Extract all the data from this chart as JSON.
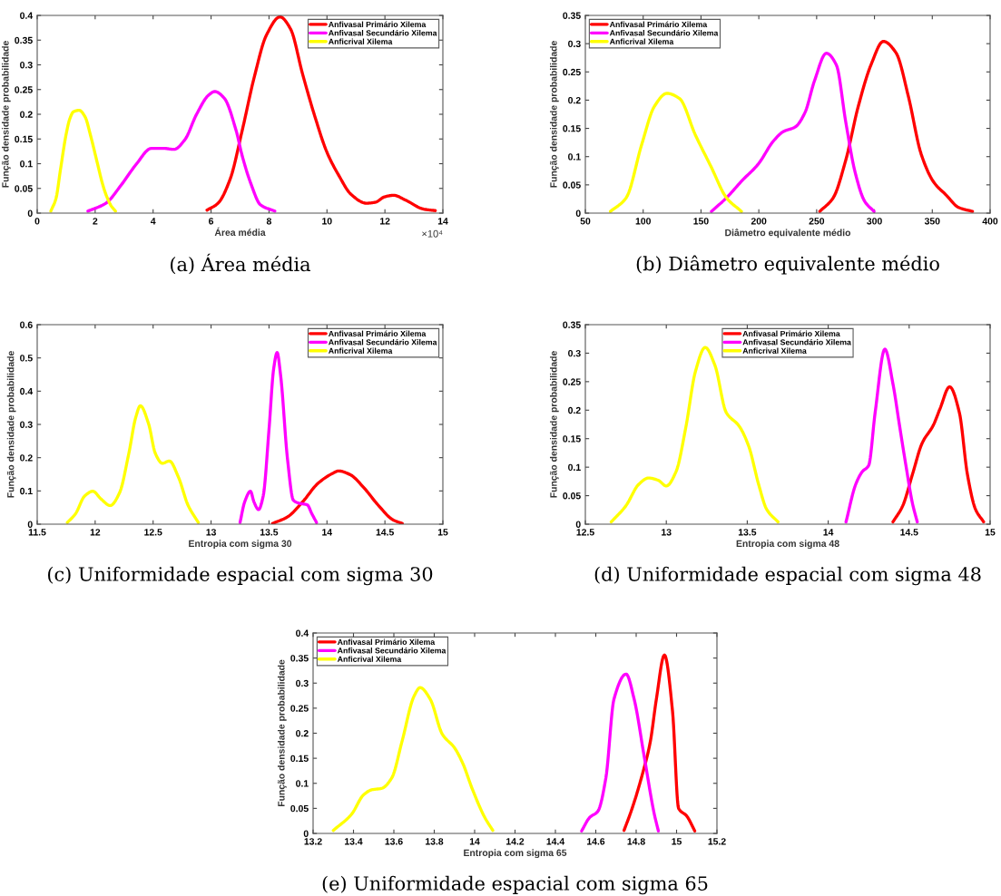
{
  "chart_data": [
    {
      "type": "line",
      "subtitle": "(a) Área média",
      "xlabel": "Área média",
      "ylabel": "Função densidade probabilidade",
      "annotations": [
        "×10⁴"
      ],
      "legend": "top right",
      "grid": false,
      "xlim": [
        0,
        14
      ],
      "xticks": [
        0,
        2,
        4,
        6,
        8,
        10,
        12,
        14
      ],
      "ylim": [
        0,
        0.4
      ],
      "yticks": [
        0,
        0.05,
        0.1,
        0.15,
        0.2,
        0.25,
        0.3,
        0.35,
        0.4
      ],
      "series": [
        {
          "name": "Anfivasal Primário Xilema",
          "color": "#ff0000",
          "x": [
            5.86,
            6.24,
            6.66,
            7.07,
            7.49,
            7.91,
            8.38,
            8.74,
            9.16,
            9.58,
            10.0,
            10.42,
            10.83,
            11.36,
            11.67,
            11.99,
            12.3,
            12.72,
            13.34,
            13.74
          ],
          "values": [
            0.006,
            0.02,
            0.069,
            0.166,
            0.275,
            0.36,
            0.397,
            0.373,
            0.281,
            0.196,
            0.123,
            0.075,
            0.038,
            0.02,
            0.022,
            0.033,
            0.036,
            0.026,
            0.008,
            0.005
          ]
        },
        {
          "name": "Anfivasal Secundário Xilema",
          "color": "#ff00ff",
          "x": [
            1.75,
            2.37,
            2.9,
            3.42,
            3.94,
            4.36,
            4.72,
            5.09,
            5.5,
            5.92,
            6.13,
            6.45,
            6.87,
            7.07,
            7.39,
            7.7,
            8.2
          ],
          "values": [
            0.004,
            0.02,
            0.057,
            0.099,
            0.131,
            0.131,
            0.129,
            0.148,
            0.2,
            0.239,
            0.246,
            0.233,
            0.166,
            0.117,
            0.057,
            0.017,
            0.004
          ]
        },
        {
          "name": "Anficrival Xilema",
          "color": "#ffff00",
          "x": [
            0.47,
            0.65,
            0.8,
            1.0,
            1.12,
            1.25,
            1.45,
            1.65,
            1.85,
            2.06,
            2.25,
            2.37,
            2.55,
            2.7
          ],
          "values": [
            0.004,
            0.03,
            0.087,
            0.16,
            0.19,
            0.205,
            0.208,
            0.195,
            0.155,
            0.105,
            0.06,
            0.038,
            0.015,
            0.004
          ]
        }
      ]
    },
    {
      "type": "line",
      "subtitle": "(b) Diâmetro equivalente médio",
      "xlabel": "Diâmetro equivalente médio",
      "ylabel": "Função densidade probabilidade",
      "legend": "top left",
      "grid": false,
      "xlim": [
        50,
        400
      ],
      "xticks": [
        50,
        100,
        150,
        200,
        250,
        300,
        350,
        400
      ],
      "ylim": [
        0,
        0.35
      ],
      "yticks": [
        0,
        0.05,
        0.1,
        0.15,
        0.2,
        0.25,
        0.3,
        0.35
      ],
      "series": [
        {
          "name": "Anfivasal Primário Xilema",
          "color": "#ff0000",
          "x": [
            252.7,
            264.3,
            275.2,
            286,
            296.9,
            307.7,
            318.6,
            329.4,
            340.3,
            351.2,
            362,
            372.8,
            384.8
          ],
          "values": [
            0.003,
            0.027,
            0.094,
            0.189,
            0.262,
            0.304,
            0.284,
            0.206,
            0.105,
            0.055,
            0.032,
            0.01,
            0.003
          ]
        },
        {
          "name": "Anfivasal Secundário Xilema",
          "color": "#ff00ff",
          "x": [
            159,
            172,
            185.7,
            199.2,
            212.8,
            220.9,
            231.8,
            239.9,
            248.1,
            258.4,
            267.1,
            275.2,
            283.3,
            291.5,
            299.6
          ],
          "values": [
            0.003,
            0.027,
            0.058,
            0.086,
            0.128,
            0.144,
            0.153,
            0.178,
            0.234,
            0.283,
            0.262,
            0.161,
            0.072,
            0.021,
            0.003
          ]
        },
        {
          "name": "Anficrival Xilema",
          "color": "#ffff00",
          "x": [
            71.7,
            85.3,
            98.8,
            109.7,
            120.5,
            131.4,
            145,
            158.5,
            172.1,
            185
          ],
          "values": [
            0.003,
            0.027,
            0.122,
            0.189,
            0.212,
            0.203,
            0.139,
            0.083,
            0.027,
            0.003
          ]
        }
      ]
    },
    {
      "type": "line",
      "subtitle": "(c) Uniformidade espacial com sigma 30",
      "xlabel": "Entropia com sigma 30",
      "ylabel": "Função densidade probabilidade",
      "legend": "top right",
      "grid": false,
      "xlim": [
        11.5,
        15
      ],
      "xticks": [
        11.5,
        12,
        12.5,
        13,
        13.5,
        14,
        14.5,
        15
      ],
      "ylim": [
        0,
        0.6
      ],
      "yticks": [
        0,
        0.1,
        0.2,
        0.3,
        0.4,
        0.5,
        0.6
      ],
      "series": [
        {
          "name": "Anfivasal Primário Xilema",
          "color": "#ff0000",
          "x": [
            13.53,
            13.66,
            13.79,
            13.92,
            14.05,
            14.1,
            14.2,
            14.31,
            14.44,
            14.57,
            14.65
          ],
          "values": [
            0.002,
            0.022,
            0.067,
            0.122,
            0.153,
            0.16,
            0.149,
            0.113,
            0.058,
            0.013,
            0.002
          ]
        },
        {
          "name": "Anfivasal Secundário Xilema",
          "color": "#ff00ff",
          "x": [
            13.25,
            13.29,
            13.34,
            13.37,
            13.41,
            13.45,
            13.5,
            13.54,
            13.57,
            13.6,
            13.66,
            13.71,
            13.76,
            13.83,
            13.87,
            13.91
          ],
          "values": [
            0.005,
            0.067,
            0.099,
            0.067,
            0.044,
            0.085,
            0.285,
            0.467,
            0.516,
            0.448,
            0.194,
            0.072,
            0.063,
            0.058,
            0.031,
            0.005
          ]
        },
        {
          "name": "Anficrival Xilema",
          "color": "#ffff00",
          "x": [
            11.76,
            11.83,
            11.91,
            11.98,
            12.05,
            12.13,
            12.21,
            12.29,
            12.35,
            12.39,
            12.46,
            12.52,
            12.58,
            12.64,
            12.72,
            12.8,
            12.89
          ],
          "values": [
            0.005,
            0.031,
            0.085,
            0.099,
            0.076,
            0.056,
            0.094,
            0.212,
            0.321,
            0.356,
            0.303,
            0.212,
            0.183,
            0.19,
            0.14,
            0.058,
            0.005
          ]
        }
      ]
    },
    {
      "type": "line",
      "subtitle": "(d) Uniformidade espacial com sigma 48",
      "xlabel": "Entropia com sigma 48",
      "ylabel": "Função densidade probabilidade",
      "legend": "top",
      "grid": false,
      "xlim": [
        12.5,
        15
      ],
      "xticks": [
        12.5,
        13,
        13.5,
        14,
        14.5,
        15
      ],
      "ylim": [
        0,
        0.35
      ],
      "yticks": [
        0,
        0.05,
        0.1,
        0.15,
        0.2,
        0.25,
        0.3,
        0.35
      ],
      "series": [
        {
          "name": "Anfivasal Primário Xilema",
          "color": "#ff0000",
          "x": [
            14.4,
            14.46,
            14.52,
            14.58,
            14.65,
            14.69,
            14.75,
            14.81,
            14.86,
            14.91,
            14.96
          ],
          "values": [
            0.004,
            0.032,
            0.087,
            0.142,
            0.174,
            0.202,
            0.241,
            0.196,
            0.087,
            0.026,
            0.004
          ]
        },
        {
          "name": "Anfivasal Secundário Xilema",
          "color": "#ff00ff",
          "x": [
            14.11,
            14.17,
            14.21,
            14.25,
            14.29,
            14.35,
            14.4,
            14.44,
            14.48,
            14.52,
            14.55
          ],
          "values": [
            0.004,
            0.07,
            0.092,
            0.103,
            0.196,
            0.307,
            0.246,
            0.174,
            0.103,
            0.037,
            0.004
          ]
        },
        {
          "name": "Anficrival Xilema",
          "color": "#ffff00",
          "x": [
            12.66,
            12.75,
            12.83,
            12.89,
            12.95,
            13.0,
            13.06,
            13.12,
            13.18,
            13.24,
            13.3,
            13.37,
            13.45,
            13.51,
            13.57,
            13.62,
            13.69
          ],
          "values": [
            0.004,
            0.032,
            0.07,
            0.081,
            0.077,
            0.067,
            0.092,
            0.169,
            0.268,
            0.31,
            0.279,
            0.196,
            0.172,
            0.136,
            0.07,
            0.026,
            0.004
          ]
        }
      ]
    },
    {
      "type": "line",
      "subtitle": "(e) Uniformidade espacial com sigma 65",
      "xlabel": "Entropia com sigma 65",
      "ylabel": "Função densidade probabilidade",
      "legend": "top left",
      "grid": false,
      "xlim": [
        13.2,
        15.2
      ],
      "xticks": [
        13.2,
        13.4,
        13.6,
        13.8,
        14,
        14.2,
        14.4,
        14.6,
        14.8,
        15,
        15.2
      ],
      "ylim": [
        0,
        0.4
      ],
      "yticks": [
        0,
        0.05,
        0.1,
        0.15,
        0.2,
        0.25,
        0.3,
        0.35,
        0.4
      ],
      "series": [
        {
          "name": "Anfivasal Primário Xilema",
          "color": "#ff0000",
          "x": [
            14.74,
            14.78,
            14.83,
            14.87,
            14.9,
            14.94,
            14.98,
            15.01,
            15.05,
            15.09
          ],
          "values": [
            0.006,
            0.05,
            0.117,
            0.183,
            0.268,
            0.356,
            0.244,
            0.05,
            0.035,
            0.005
          ]
        },
        {
          "name": "Anfivasal Secundário Xilema",
          "color": "#ff00ff",
          "x": [
            14.53,
            14.57,
            14.61,
            14.65,
            14.69,
            14.75,
            14.79,
            14.84,
            14.89,
            14.91
          ],
          "values": [
            0.005,
            0.032,
            0.044,
            0.111,
            0.268,
            0.318,
            0.268,
            0.153,
            0.038,
            0.005
          ]
        },
        {
          "name": "Anficrival Xilema",
          "color": "#ffff00",
          "x": [
            13.3,
            13.39,
            13.45,
            13.49,
            13.54,
            13.59,
            13.64,
            13.7,
            13.73,
            13.78,
            13.84,
            13.9,
            13.94,
            13.99,
            14.05,
            14.09
          ],
          "values": [
            0.006,
            0.038,
            0.077,
            0.087,
            0.09,
            0.111,
            0.183,
            0.274,
            0.291,
            0.268,
            0.198,
            0.171,
            0.141,
            0.087,
            0.032,
            0.006
          ]
        }
      ]
    }
  ]
}
